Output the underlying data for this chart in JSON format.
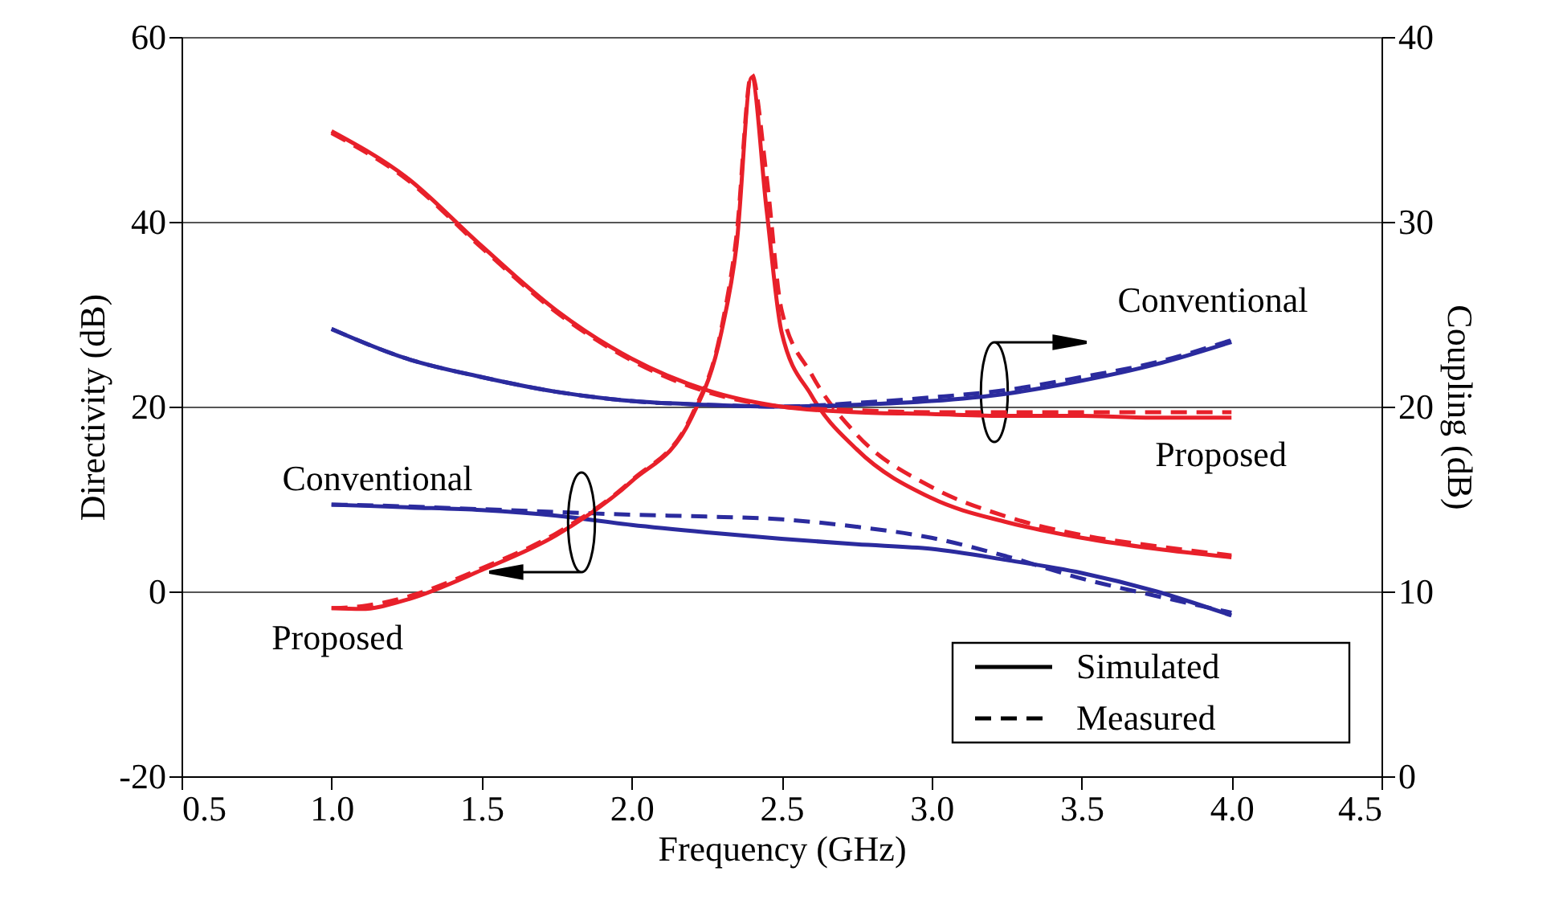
{
  "chart_data": {
    "type": "line",
    "xlabel": "Frequency (GHz)",
    "ylabel": "Directivity (dB)",
    "y2label": "Coupling (dB)",
    "xlim": [
      0.5,
      4.5
    ],
    "xticks": [
      0.5,
      {
        "value": 1,
        "label": "1.0"
      },
      1.5,
      {
        "value": 2,
        "label": "2.0"
      },
      2.5,
      {
        "value": 3,
        "label": "3.0"
      },
      3.5,
      {
        "value": 4,
        "label": "4.0"
      },
      4.5
    ],
    "ylim": [
      -20,
      60
    ],
    "yticks": [
      -20,
      0,
      20,
      40,
      60
    ],
    "y2lim": [
      0,
      40
    ],
    "y2ticks": [
      0,
      10,
      20,
      30,
      40
    ],
    "grid": "y",
    "legend": "bottom right",
    "series": [
      {
        "name": "Simulated",
        "color": "#2b2b9e",
        "line_style": "solid",
        "axis": "y",
        "x": [
          1,
          1.25,
          1.5,
          1.75,
          2,
          2.25,
          2.5,
          2.75,
          3,
          3.25,
          3.5,
          3.75,
          4
        ],
        "values": [
          9.4,
          9.1,
          8.8,
          8.2,
          7.2,
          6.4,
          5.7,
          5.1,
          4.6,
          3.4,
          2.0,
          0.0,
          -2.6
        ]
      },
      {
        "name": "Measured",
        "color": "#2b2b9e",
        "line_style": "dashed",
        "axis": "y",
        "x": [
          1,
          1.25,
          1.5,
          1.75,
          2,
          2.25,
          2.5,
          2.75,
          3,
          3.25,
          3.5,
          3.75,
          4
        ],
        "values": [
          9.4,
          9.2,
          8.9,
          8.6,
          8.3,
          8.1,
          7.8,
          7.0,
          5.8,
          3.8,
          1.4,
          -0.5,
          -2.3
        ]
      },
      {
        "color": "#e8202a",
        "line_style": "solid",
        "axis": "y",
        "x": [
          1,
          1.1,
          1.25,
          1.5,
          1.75,
          2,
          2.2,
          2.3,
          2.35,
          2.4,
          2.45,
          2.5,
          2.6,
          2.75,
          3,
          3.25,
          3.5,
          3.75,
          4
        ],
        "values": [
          -1.8,
          -1.9,
          -0.9,
          2.3,
          6.1,
          11.9,
          18.8,
          28.1,
          37.4,
          55.6,
          41.4,
          28.1,
          21.2,
          15.4,
          10.1,
          7.5,
          5.8,
          4.6,
          3.7
        ]
      },
      {
        "color": "#e8202a",
        "line_style": "dashed",
        "axis": "y",
        "x": [
          1,
          1.1,
          1.25,
          1.5,
          1.75,
          2,
          2.2,
          2.3,
          2.35,
          2.4,
          2.45,
          2.5,
          2.6,
          2.75,
          3,
          3.25,
          3.5,
          3.75,
          4
        ],
        "values": [
          -1.8,
          -1.6,
          -0.6,
          2.5,
          6.3,
          12.0,
          19.0,
          28.5,
          38.5,
          56.0,
          45.0,
          30.5,
          23.5,
          17.0,
          11.3,
          8.1,
          6.1,
          4.9,
          3.9
        ]
      },
      {
        "color": "#2b2b9e",
        "line_style": "solid",
        "axis": "y2",
        "x": [
          1,
          1.25,
          1.5,
          1.75,
          2,
          2.25,
          2.5,
          2.75,
          3,
          3.25,
          3.5,
          3.75,
          4
        ],
        "values": [
          24.2,
          22.6,
          21.6,
          20.8,
          20.3,
          20.1,
          20.0,
          20.1,
          20.3,
          20.7,
          21.4,
          22.3,
          23.5
        ]
      },
      {
        "color": "#2b2b9e",
        "line_style": "dashed",
        "axis": "y2",
        "x": [
          1,
          1.25,
          1.5,
          1.75,
          2,
          2.25,
          2.5,
          2.75,
          3,
          3.25,
          3.5,
          3.75,
          4
        ],
        "values": [
          24.2,
          22.6,
          21.6,
          20.8,
          20.3,
          20.1,
          20.0,
          20.2,
          20.5,
          20.9,
          21.6,
          22.4,
          23.6
        ]
      },
      {
        "color": "#e8202a",
        "line_style": "solid",
        "axis": "y2",
        "x": [
          1,
          1.25,
          1.5,
          1.75,
          2,
          2.25,
          2.5,
          2.75,
          3,
          3.25,
          3.5,
          3.75,
          4
        ],
        "values": [
          34.9,
          32.4,
          28.7,
          25.2,
          22.6,
          20.9,
          20.0,
          19.7,
          19.6,
          19.5,
          19.5,
          19.4,
          19.4
        ]
      },
      {
        "color": "#e8202a",
        "line_style": "dashed",
        "axis": "y2",
        "x": [
          1,
          1.25,
          1.5,
          1.75,
          2,
          2.25,
          2.5,
          2.75,
          3,
          3.25,
          3.5,
          3.75,
          4
        ],
        "values": [
          34.8,
          32.3,
          28.6,
          25.1,
          22.5,
          20.8,
          20.0,
          19.8,
          19.7,
          19.7,
          19.7,
          19.7,
          19.7
        ]
      }
    ],
    "annotations": [
      "Conventional",
      "Proposed",
      "Conventional",
      "Proposed"
    ]
  }
}
